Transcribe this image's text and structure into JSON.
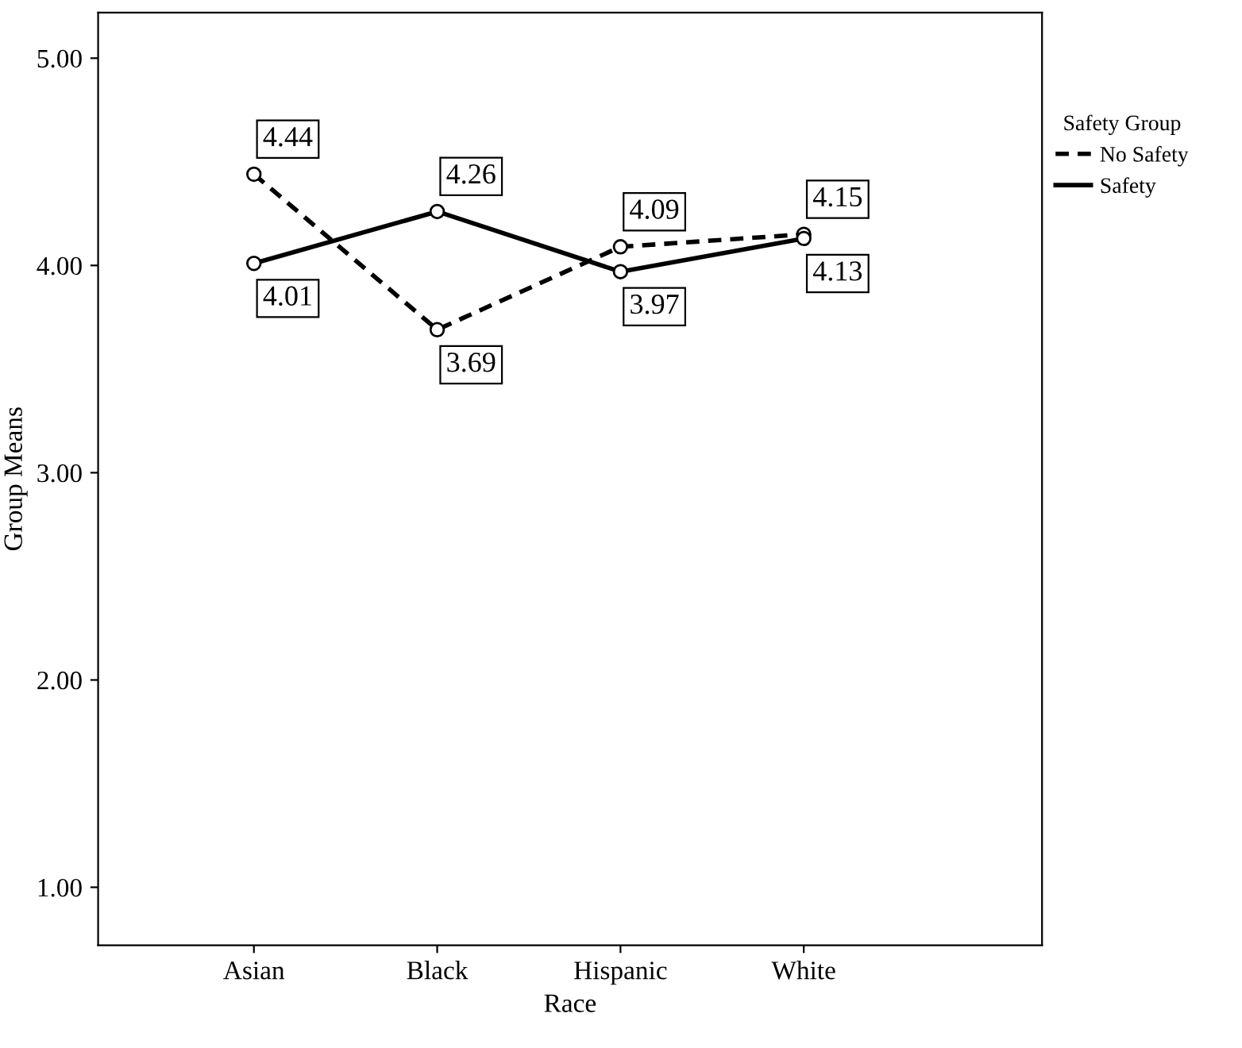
{
  "chart_data": {
    "type": "line",
    "xlabel": "Race",
    "ylabel": "Group Means",
    "legend_title": "Safety Group",
    "categories": [
      "Asian",
      "Black",
      "Hispanic",
      "White"
    ],
    "series": [
      {
        "name": "No Safety",
        "color": "#000000",
        "line_style": "dashed",
        "values": [
          4.44,
          3.69,
          4.09,
          4.15
        ]
      },
      {
        "name": "Safety",
        "color": "#000000",
        "line_style": "solid",
        "values": [
          4.01,
          4.26,
          3.97,
          4.13
        ]
      }
    ],
    "marker": "circle",
    "data_labels": true,
    "legend": "right",
    "grid": false,
    "ylim": [
      0.72,
      5.22
    ],
    "yticks": [
      {
        "value": 1,
        "label": "1.00"
      },
      {
        "value": 2,
        "label": "2.00"
      },
      {
        "value": 3,
        "label": "3.00"
      },
      {
        "value": 4,
        "label": "4.00"
      },
      {
        "value": 5,
        "label": "5.00"
      }
    ]
  }
}
